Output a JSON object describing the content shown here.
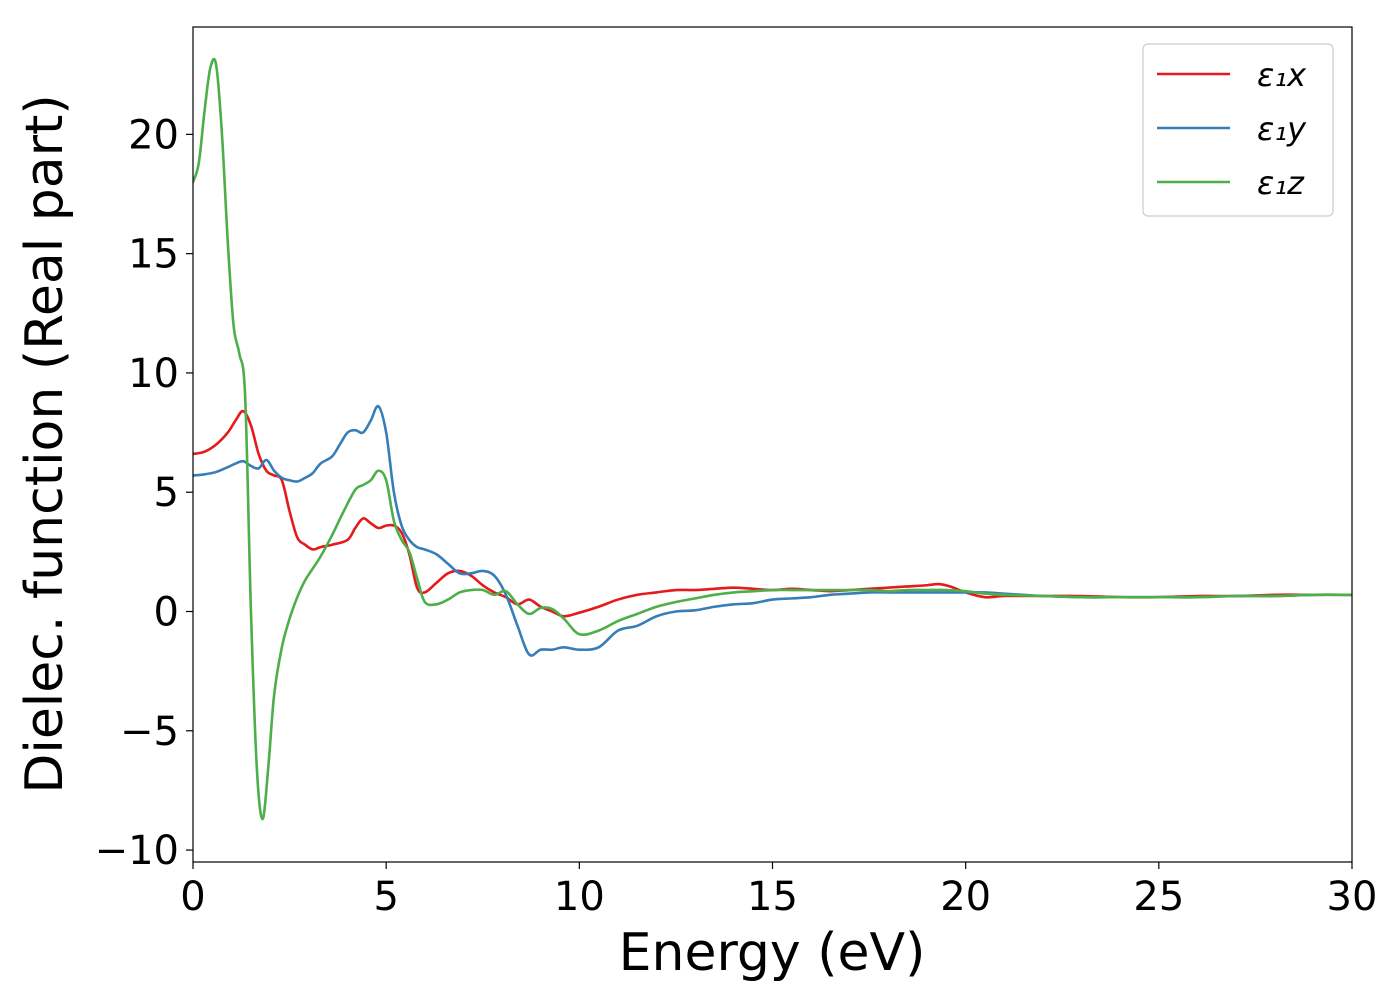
{
  "chart_data": {
    "type": "line",
    "title": "",
    "xlabel": "Energy (eV)",
    "ylabel": "Dielec. function (Real part)",
    "xlim": [
      0,
      30
    ],
    "ylim": [
      -10.5,
      24.5
    ],
    "xticks": [
      0,
      5,
      10,
      15,
      20,
      25,
      30
    ],
    "xtick_labels": [
      "0",
      "5",
      "10",
      "15",
      "20",
      "25",
      "30"
    ],
    "yticks": [
      -10,
      -5,
      0,
      5,
      10,
      15,
      20
    ],
    "ytick_labels": [
      "−10",
      "−5",
      "0",
      "5",
      "10",
      "15",
      "20"
    ],
    "grid": false,
    "legend_position": "top-right",
    "series": [
      {
        "name": "ε₁x",
        "color": "#e41a1c",
        "x": [
          0,
          0.3,
          0.6,
          0.9,
          1.1,
          1.3,
          1.5,
          1.7,
          1.9,
          2.1,
          2.3,
          2.5,
          2.7,
          2.9,
          3.1,
          3.3,
          3.6,
          4.0,
          4.2,
          4.4,
          4.6,
          4.8,
          5.0,
          5.2,
          5.4,
          5.6,
          5.8,
          6.0,
          6.3,
          6.6,
          6.9,
          7.2,
          7.5,
          7.8,
          8.1,
          8.4,
          8.7,
          9.0,
          9.3,
          9.6,
          10.0,
          10.5,
          11.0,
          11.5,
          12.0,
          12.5,
          13.0,
          13.5,
          14.0,
          14.5,
          15.0,
          15.5,
          16.0,
          16.5,
          17.0,
          17.5,
          18.0,
          18.5,
          19.0,
          19.3,
          19.6,
          20.0,
          20.5,
          21.0,
          22.0,
          23.0,
          24.0,
          25.0,
          26.0,
          27.0,
          28.0,
          29.0,
          30.0
        ],
        "y": [
          6.6,
          6.7,
          7.0,
          7.5,
          8.0,
          8.4,
          7.8,
          6.6,
          5.9,
          5.7,
          5.5,
          4.2,
          3.1,
          2.8,
          2.6,
          2.7,
          2.8,
          3.0,
          3.5,
          3.9,
          3.7,
          3.5,
          3.6,
          3.6,
          3.3,
          2.4,
          1.0,
          0.8,
          1.2,
          1.6,
          1.7,
          1.5,
          1.1,
          0.8,
          0.6,
          0.3,
          0.5,
          0.2,
          0.0,
          -0.2,
          -0.05,
          0.2,
          0.5,
          0.7,
          0.8,
          0.9,
          0.9,
          0.95,
          1.0,
          0.95,
          0.9,
          0.95,
          0.9,
          0.85,
          0.9,
          0.95,
          1.0,
          1.05,
          1.1,
          1.15,
          1.05,
          0.8,
          0.6,
          0.65,
          0.65,
          0.65,
          0.6,
          0.6,
          0.65,
          0.65,
          0.7,
          0.7,
          0.7
        ]
      },
      {
        "name": "ε₁y",
        "color": "#377eb8",
        "x": [
          0,
          0.3,
          0.6,
          0.9,
          1.1,
          1.3,
          1.5,
          1.7,
          1.9,
          2.1,
          2.3,
          2.5,
          2.7,
          2.9,
          3.1,
          3.3,
          3.6,
          3.8,
          4.0,
          4.2,
          4.4,
          4.6,
          4.8,
          5.0,
          5.2,
          5.4,
          5.6,
          5.8,
          6.0,
          6.3,
          6.6,
          6.9,
          7.2,
          7.5,
          7.8,
          8.1,
          8.4,
          8.7,
          9.0,
          9.3,
          9.6,
          10.0,
          10.5,
          11.0,
          11.5,
          12.0,
          12.5,
          13.0,
          13.5,
          14.0,
          14.5,
          15.0,
          15.5,
          16.0,
          16.5,
          17.0,
          17.5,
          18.0,
          18.5,
          19.0,
          19.5,
          20.0,
          20.5,
          21.0,
          22.0,
          23.0,
          24.0,
          25.0,
          26.0,
          27.0,
          28.0,
          29.0,
          30.0
        ],
        "y": [
          5.7,
          5.75,
          5.85,
          6.05,
          6.2,
          6.3,
          6.1,
          6.0,
          6.35,
          5.9,
          5.6,
          5.5,
          5.45,
          5.6,
          5.8,
          6.2,
          6.5,
          7.0,
          7.5,
          7.6,
          7.5,
          8.0,
          8.6,
          7.5,
          5.0,
          3.6,
          3.0,
          2.7,
          2.6,
          2.4,
          2.0,
          1.6,
          1.6,
          1.7,
          1.5,
          0.7,
          -0.6,
          -1.8,
          -1.6,
          -1.6,
          -1.5,
          -1.6,
          -1.5,
          -0.8,
          -0.6,
          -0.2,
          0.0,
          0.05,
          0.2,
          0.3,
          0.35,
          0.5,
          0.55,
          0.6,
          0.7,
          0.75,
          0.8,
          0.8,
          0.8,
          0.8,
          0.8,
          0.8,
          0.8,
          0.75,
          0.65,
          0.6,
          0.6,
          0.6,
          0.6,
          0.65,
          0.65,
          0.7,
          0.7
        ]
      },
      {
        "name": "ε₁z",
        "color": "#4daf4a",
        "x": [
          0,
          0.15,
          0.3,
          0.45,
          0.6,
          0.75,
          0.9,
          1.05,
          1.2,
          1.35,
          1.5,
          1.65,
          1.8,
          1.95,
          2.1,
          2.3,
          2.5,
          2.7,
          2.9,
          3.1,
          3.3,
          3.6,
          3.9,
          4.2,
          4.4,
          4.6,
          4.8,
          5.0,
          5.2,
          5.4,
          5.6,
          5.8,
          6.0,
          6.3,
          6.6,
          6.9,
          7.2,
          7.5,
          7.8,
          8.1,
          8.4,
          8.7,
          9.0,
          9.3,
          9.6,
          10.0,
          10.5,
          11.0,
          11.5,
          12.0,
          12.5,
          13.0,
          13.5,
          14.0,
          14.5,
          15.0,
          15.5,
          16.0,
          16.5,
          17.0,
          17.5,
          18.0,
          18.5,
          19.0,
          19.5,
          20.0,
          20.5,
          21.0,
          22.0,
          23.0,
          24.0,
          25.0,
          26.0,
          27.0,
          28.0,
          29.0,
          30.0
        ],
        "y": [
          18.0,
          18.8,
          21.0,
          22.8,
          22.9,
          20.0,
          15.5,
          12.0,
          10.8,
          9.0,
          0.0,
          -6.5,
          -8.7,
          -6.5,
          -3.5,
          -1.5,
          -0.3,
          0.6,
          1.3,
          1.8,
          2.3,
          3.2,
          4.2,
          5.1,
          5.3,
          5.5,
          5.9,
          5.5,
          3.8,
          3.0,
          2.5,
          1.4,
          0.4,
          0.3,
          0.5,
          0.8,
          0.9,
          0.9,
          0.7,
          0.85,
          0.3,
          -0.1,
          0.15,
          0.1,
          -0.3,
          -0.95,
          -0.8,
          -0.4,
          -0.1,
          0.2,
          0.4,
          0.55,
          0.7,
          0.8,
          0.85,
          0.9,
          0.9,
          0.9,
          0.9,
          0.9,
          0.9,
          0.85,
          0.9,
          0.9,
          0.9,
          0.85,
          0.75,
          0.7,
          0.65,
          0.6,
          0.6,
          0.6,
          0.6,
          0.65,
          0.65,
          0.7,
          0.7
        ]
      }
    ]
  }
}
